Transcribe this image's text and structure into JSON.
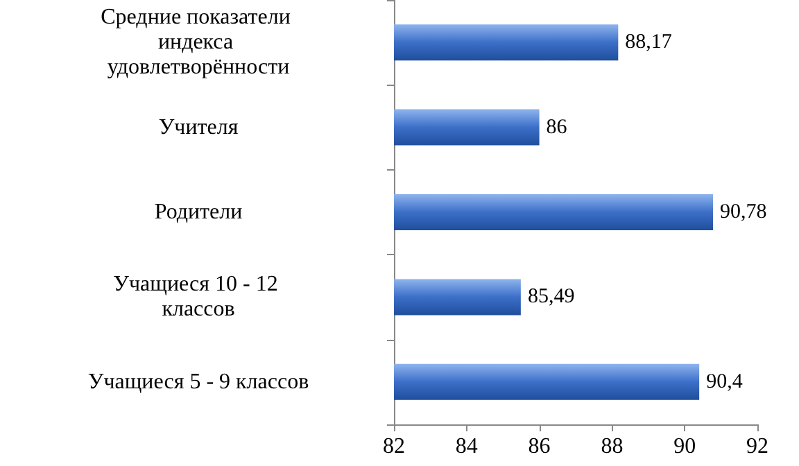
{
  "chart_data": {
    "type": "bar",
    "orientation": "horizontal",
    "categories": [
      "Средние показатели индекса удовлетворённости",
      "Учителя",
      "Родители",
      "Учащиеся 10 - 12 классов",
      "Учащиеся 5 - 9 классов"
    ],
    "values": [
      88.17,
      86,
      90.78,
      85.49,
      90.4
    ],
    "value_labels": [
      "88,17",
      "86",
      "90,78",
      "85,49",
      "90,4"
    ],
    "color": "#3c6fc8",
    "xlim": [
      82,
      92
    ],
    "xticks": [
      82,
      84,
      86,
      88,
      90,
      92
    ]
  }
}
